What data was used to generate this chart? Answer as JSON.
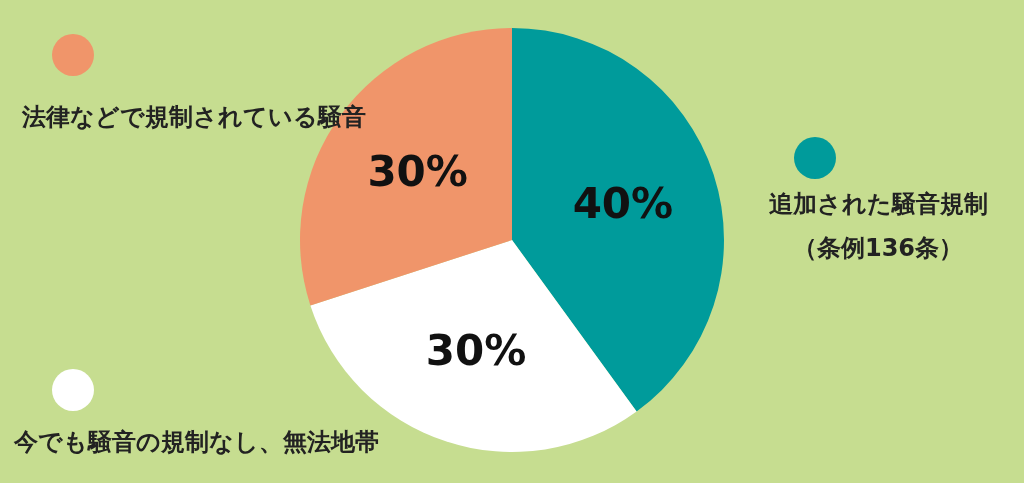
{
  "chart_data": {
    "type": "pie",
    "legend": "left",
    "categories": [
      "追加された騒音規制（条例136条）",
      "今でも騒音の規制なし、無法地帯",
      "法律などで規制されている騒音"
    ],
    "values": [
      40,
      30,
      30
    ],
    "colors": [
      "#009b9b",
      "#ffffff",
      "#f0956a"
    ],
    "value_labels": [
      "40%",
      "30%",
      "30%"
    ]
  }
}
